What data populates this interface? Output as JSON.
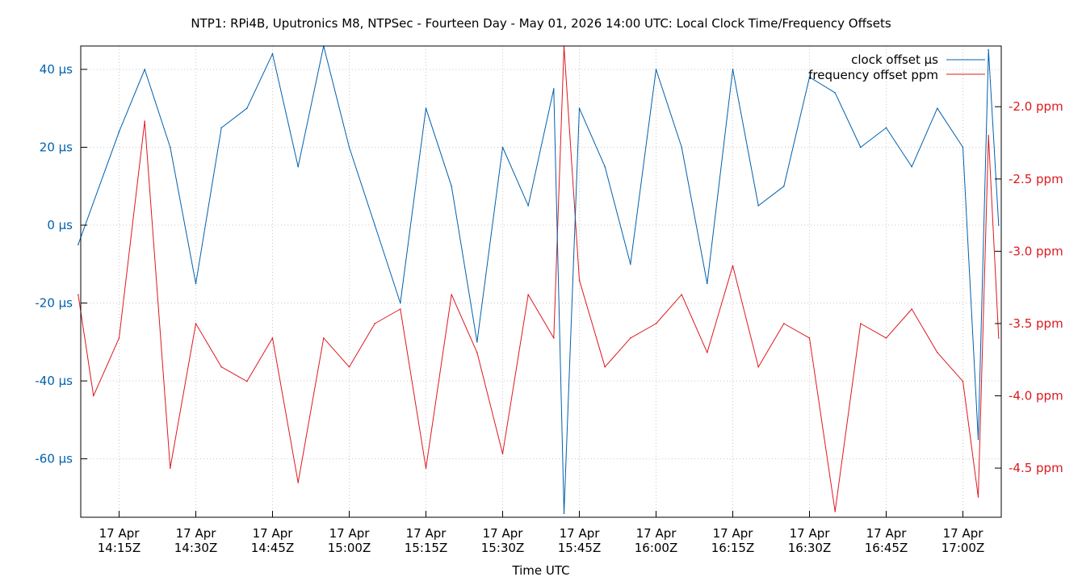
{
  "chart_data": {
    "type": "line",
    "title": "NTP1: RPi4B, Uputronics M8, NTPSec - Fourteen Day - May 01, 2026 14:00 UTC: Local Clock Time/Frequency Offsets",
    "xlabel": "Time UTC",
    "x_ticks": [
      {
        "date": "17 Apr",
        "time": "14:15Z"
      },
      {
        "date": "17 Apr",
        "time": "14:30Z"
      },
      {
        "date": "17 Apr",
        "time": "14:45Z"
      },
      {
        "date": "17 Apr",
        "time": "15:00Z"
      },
      {
        "date": "17 Apr",
        "time": "15:15Z"
      },
      {
        "date": "17 Apr",
        "time": "15:30Z"
      },
      {
        "date": "17 Apr",
        "time": "15:45Z"
      },
      {
        "date": "17 Apr",
        "time": "16:00Z"
      },
      {
        "date": "17 Apr",
        "time": "16:15Z"
      },
      {
        "date": "17 Apr",
        "time": "16:30Z"
      },
      {
        "date": "17 Apr",
        "time": "16:45Z"
      },
      {
        "date": "17 Apr",
        "time": "17:00Z"
      }
    ],
    "xlim": [
      "17 Apr 14:07:30Z",
      "17 Apr 17:07:30Z"
    ],
    "y_left": {
      "unit": "µs",
      "ylim": [
        -75,
        46
      ],
      "ticks": [
        "40 µs",
        "20 µs",
        "0 µs",
        "-20 µs",
        "-40 µs",
        "-60 µs"
      ],
      "tick_values": [
        40,
        20,
        0,
        -20,
        -40,
        -60
      ]
    },
    "y_right": {
      "unit": "ppm",
      "ylim": [
        -4.84,
        -1.58
      ],
      "ticks": [
        "-2.0 ppm",
        "-2.5 ppm",
        "-3.0 ppm",
        "-3.5 ppm",
        "-4.0 ppm",
        "-4.5 ppm"
      ],
      "tick_values": [
        -2.0,
        -2.5,
        -3.0,
        -3.5,
        -4.0,
        -4.5
      ]
    },
    "grid": true,
    "legend_position": "top-right",
    "series": [
      {
        "name": "clock offset µs",
        "axis": "left",
        "color": "#0060ad",
        "x": [
          "14:07",
          "14:15",
          "14:20",
          "14:25",
          "14:30",
          "14:35",
          "14:40",
          "14:45",
          "14:50",
          "14:55",
          "15:00",
          "15:05",
          "15:10",
          "15:15",
          "15:20",
          "15:25",
          "15:30",
          "15:35",
          "15:40",
          "15:42",
          "15:45",
          "15:50",
          "15:55",
          "16:00",
          "16:05",
          "16:10",
          "16:15",
          "16:20",
          "16:25",
          "16:30",
          "16:35",
          "16:40",
          "16:45",
          "16:50",
          "16:55",
          "17:00",
          "17:03",
          "17:05",
          "17:07"
        ],
        "values": [
          -5,
          24,
          40,
          20,
          -15,
          25,
          30,
          44,
          15,
          46,
          20,
          0,
          -20,
          30,
          10,
          -30,
          20,
          5,
          35,
          -74,
          30,
          15,
          -10,
          40,
          20,
          -15,
          40,
          5,
          10,
          38,
          34,
          20,
          25,
          15,
          30,
          20,
          -55,
          45,
          0
        ]
      },
      {
        "name": "frequency offset ppm",
        "axis": "right",
        "color": "#dd181f",
        "x": [
          "14:07",
          "14:10",
          "14:15",
          "14:20",
          "14:25",
          "14:30",
          "14:35",
          "14:40",
          "14:45",
          "14:50",
          "14:55",
          "15:00",
          "15:05",
          "15:10",
          "15:15",
          "15:20",
          "15:25",
          "15:30",
          "15:35",
          "15:40",
          "15:42",
          "15:45",
          "15:50",
          "15:55",
          "16:00",
          "16:05",
          "16:10",
          "16:15",
          "16:20",
          "16:25",
          "16:30",
          "16:35",
          "16:40",
          "16:45",
          "16:50",
          "16:55",
          "17:00",
          "17:03",
          "17:05",
          "17:07"
        ],
        "values": [
          -3.3,
          -4.0,
          -3.6,
          -2.1,
          -4.5,
          -3.5,
          -3.8,
          -3.9,
          -3.6,
          -4.6,
          -3.6,
          -3.8,
          -3.5,
          -3.4,
          -4.5,
          -3.3,
          -3.7,
          -4.4,
          -3.3,
          -3.6,
          -1.58,
          -3.2,
          -3.8,
          -3.6,
          -3.5,
          -3.3,
          -3.7,
          -3.1,
          -3.8,
          -3.5,
          -3.6,
          -4.8,
          -3.5,
          -3.6,
          -3.4,
          -3.7,
          -3.9,
          -4.7,
          -2.2,
          -3.6
        ]
      }
    ]
  }
}
